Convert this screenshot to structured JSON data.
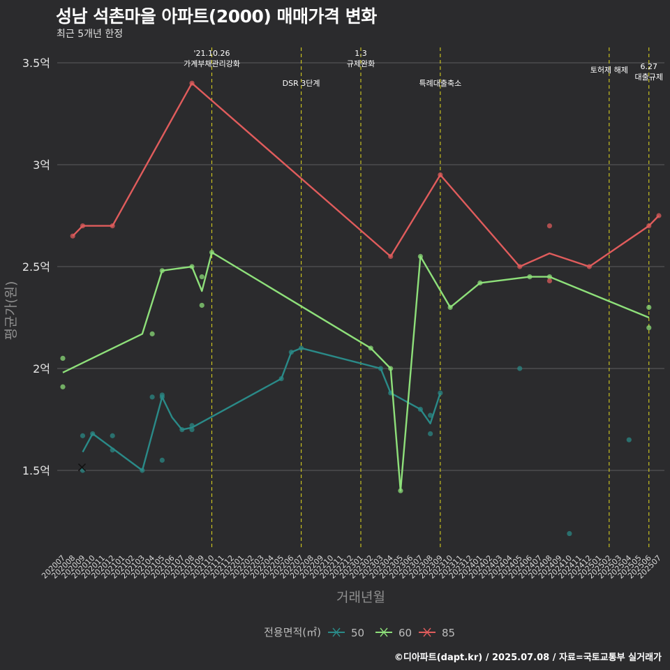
{
  "header": {
    "title": "성남 석촌마을 아파트(2000) 매매가격 변화",
    "subtitle": "최근 5개년 한정"
  },
  "caption": "©디아파트(dapt.kr) / 2025.07.08 / 자료=국토교통부 실거래가",
  "colors": {
    "background": "#2b2b2d",
    "grid": "#5c5c5e",
    "event_line": "#d4cc1f",
    "series_50": "#2a8a88",
    "series_60": "#8ee07a",
    "series_85": "#e05c5c"
  },
  "chart_data": {
    "type": "line",
    "title": "성남 석촌마을 아파트(2000) 매매가격 변화",
    "subtitle": "최근 5개년 한정",
    "xlabel": "거래년월",
    "ylabel": "평균가(원)",
    "ylim": [
      1.1,
      3.56
    ],
    "yticks": [
      {
        "value": 1.5,
        "label": "1.5억"
      },
      {
        "value": 2.0,
        "label": "2억"
      },
      {
        "value": 2.5,
        "label": "2.5억"
      },
      {
        "value": 3.0,
        "label": "3억"
      },
      {
        "value": 3.5,
        "label": "3.5억"
      }
    ],
    "categories": [
      "202007",
      "202008",
      "202009",
      "202010",
      "202011",
      "202012",
      "202101",
      "202102",
      "202103",
      "202104",
      "202105",
      "202106",
      "202107",
      "202108",
      "202109",
      "202110",
      "202111",
      "202112",
      "202201",
      "202202",
      "202203",
      "202204",
      "202205",
      "202206",
      "202207",
      "202208",
      "202209",
      "202210",
      "202211",
      "202212",
      "202301",
      "202302",
      "202303",
      "202304",
      "202305",
      "202306",
      "202307",
      "202308",
      "202309",
      "202310",
      "202311",
      "202312",
      "202401",
      "202402",
      "202403",
      "202404",
      "202405",
      "202406",
      "202407",
      "202408",
      "202409",
      "202410",
      "202411",
      "202412",
      "202501",
      "202502",
      "202503",
      "202504",
      "202505",
      "202506",
      "202507"
    ],
    "legend": {
      "title": "전용면적(㎡)",
      "position": "bottom",
      "items": [
        "50",
        "60",
        "85"
      ]
    },
    "grid": true,
    "series": [
      {
        "name": "50",
        "color_key": "series_50",
        "line": [
          [
            "202009",
            1.59
          ],
          [
            "202010",
            1.68
          ],
          [
            "202103",
            1.5
          ],
          [
            "202105",
            1.86
          ],
          [
            "202106",
            1.76
          ],
          [
            "202107",
            1.7
          ],
          [
            "202108",
            1.71
          ],
          [
            "202205",
            1.95
          ],
          [
            "202206",
            2.08
          ],
          [
            "202207",
            2.1
          ],
          [
            "202303",
            2.0
          ],
          [
            "202304",
            1.88
          ],
          [
            "202307",
            1.8
          ],
          [
            "202308",
            1.73
          ],
          [
            "202309",
            1.88
          ]
        ],
        "points": [
          [
            "202009",
            1.67
          ],
          [
            "202009",
            1.5
          ],
          [
            "202010",
            1.68
          ],
          [
            "202012",
            1.67
          ],
          [
            "202012",
            1.6
          ],
          [
            "202103",
            1.5
          ],
          [
            "202104",
            1.86
          ],
          [
            "202105",
            1.87
          ],
          [
            "202105",
            1.86
          ],
          [
            "202105",
            1.55
          ],
          [
            "202107",
            1.7
          ],
          [
            "202108",
            1.72
          ],
          [
            "202108",
            1.7
          ],
          [
            "202205",
            1.95
          ],
          [
            "202206",
            2.08
          ],
          [
            "202207",
            2.1
          ],
          [
            "202303",
            2.0
          ],
          [
            "202304",
            1.88
          ],
          [
            "202307",
            1.8
          ],
          [
            "202308",
            1.77
          ],
          [
            "202308",
            1.68
          ],
          [
            "202309",
            1.88
          ],
          [
            "202405",
            2.0
          ],
          [
            "202410",
            1.19
          ],
          [
            "202504",
            1.65
          ]
        ]
      },
      {
        "name": "60",
        "color_key": "series_60",
        "line": [
          [
            "202007",
            1.98
          ],
          [
            "202103",
            2.17
          ],
          [
            "202105",
            2.48
          ],
          [
            "202108",
            2.5
          ],
          [
            "202109",
            2.38
          ],
          [
            "202110",
            2.57
          ],
          [
            "202302",
            2.1
          ],
          [
            "202304",
            2.0
          ],
          [
            "202305",
            1.4
          ],
          [
            "202307",
            2.55
          ],
          [
            "202310",
            2.3
          ],
          [
            "202401",
            2.42
          ],
          [
            "202406",
            2.45
          ],
          [
            "202408",
            2.45
          ],
          [
            "202506",
            2.25
          ]
        ],
        "points": [
          [
            "202007",
            2.05
          ],
          [
            "202007",
            1.91
          ],
          [
            "202104",
            2.17
          ],
          [
            "202105",
            2.48
          ],
          [
            "202108",
            2.5
          ],
          [
            "202109",
            2.45
          ],
          [
            "202109",
            2.31
          ],
          [
            "202110",
            2.57
          ],
          [
            "202302",
            2.1
          ],
          [
            "202304",
            2.0
          ],
          [
            "202305",
            1.4
          ],
          [
            "202307",
            2.55
          ],
          [
            "202310",
            2.3
          ],
          [
            "202401",
            2.42
          ],
          [
            "202406",
            2.45
          ],
          [
            "202408",
            2.45
          ],
          [
            "202506",
            2.3
          ],
          [
            "202506",
            2.2
          ]
        ]
      },
      {
        "name": "85",
        "color_key": "series_85",
        "line": [
          [
            "202008",
            2.65
          ],
          [
            "202009",
            2.7
          ],
          [
            "202012",
            2.7
          ],
          [
            "202108",
            3.4
          ],
          [
            "202304",
            2.55
          ],
          [
            "202309",
            2.95
          ],
          [
            "202405",
            2.5
          ],
          [
            "202408",
            2.565
          ],
          [
            "202412",
            2.5
          ],
          [
            "202506",
            2.7
          ],
          [
            "202507",
            2.75
          ]
        ],
        "points": [
          [
            "202008",
            2.65
          ],
          [
            "202009",
            2.7
          ],
          [
            "202012",
            2.7
          ],
          [
            "202108",
            3.4
          ],
          [
            "202304",
            2.55
          ],
          [
            "202309",
            2.95
          ],
          [
            "202405",
            2.5
          ],
          [
            "202408",
            2.7
          ],
          [
            "202408",
            2.43
          ],
          [
            "202412",
            2.5
          ],
          [
            "202506",
            2.7
          ],
          [
            "202507",
            2.75
          ]
        ]
      }
    ],
    "events": [
      {
        "date": "202110",
        "lines": [
          "'21.10.26",
          "가계부채관리강화"
        ],
        "row": "top"
      },
      {
        "date": "202207",
        "lines": [
          "DSR 3단계"
        ],
        "row": "low"
      },
      {
        "date": "202301",
        "lines": [
          "1.3",
          "규제완화"
        ],
        "row": "top"
      },
      {
        "date": "202309",
        "lines": [
          "특례대출축소"
        ],
        "row": "low"
      },
      {
        "date": "202502",
        "lines": [
          "토허제 해제"
        ],
        "row": "mid"
      },
      {
        "date": "202506",
        "lines": [
          "6.27",
          "대출규제"
        ],
        "row": "third"
      }
    ]
  }
}
